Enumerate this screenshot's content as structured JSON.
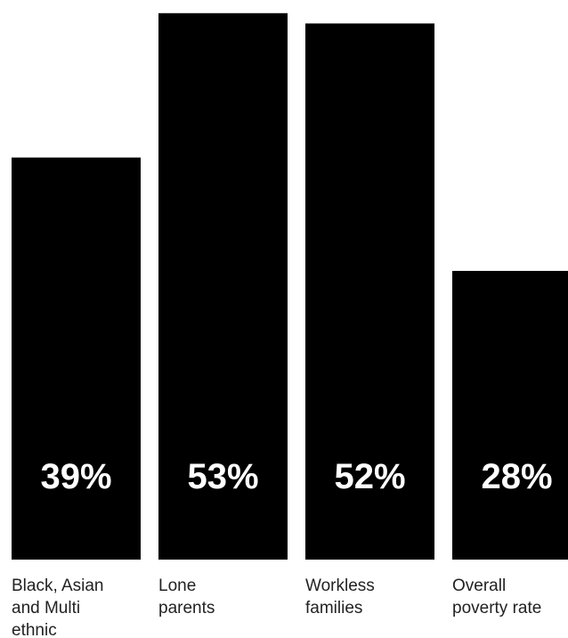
{
  "chart_data": {
    "type": "bar",
    "categories": [
      [
        "Black, Asian",
        "and Multi",
        "ethnic"
      ],
      [
        "Lone",
        "parents"
      ],
      [
        "Workless",
        "families"
      ],
      [
        "Overall",
        "poverty rate"
      ]
    ],
    "values": [
      39,
      53,
      52,
      28
    ],
    "value_labels": [
      "39%",
      "53%",
      "52%",
      "28%"
    ],
    "title": "",
    "xlabel": "",
    "ylabel": "",
    "ylim": [
      0,
      53.5
    ],
    "grid": false,
    "colors": {
      "bar": "#000000",
      "value_text": "#ffffff",
      "category_text": "#222222"
    }
  }
}
